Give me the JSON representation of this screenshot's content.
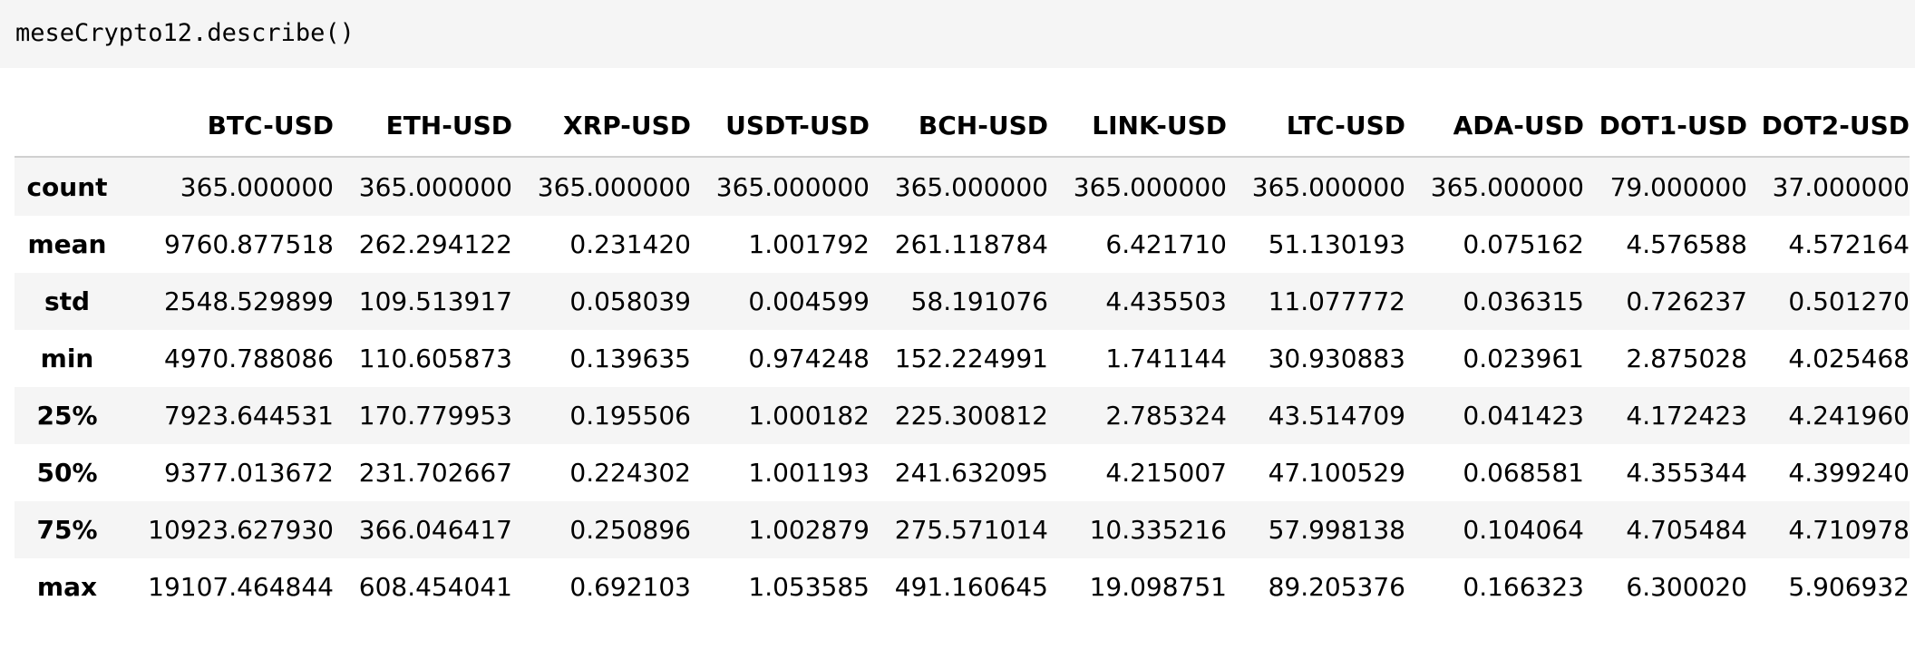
{
  "code_cell": {
    "input": "meseCrypto12.describe()"
  },
  "dataframe": {
    "columns": [
      "BTC-USD",
      "ETH-USD",
      "XRP-USD",
      "USDT-USD",
      "BCH-USD",
      "LINK-USD",
      "LTC-USD",
      "ADA-USD",
      "DOT1-USD",
      "DOT2-USD"
    ],
    "rows": [
      {
        "label": "count",
        "values": [
          "365.000000",
          "365.000000",
          "365.000000",
          "365.000000",
          "365.000000",
          "365.000000",
          "365.000000",
          "365.000000",
          "79.000000",
          "37.000000"
        ]
      },
      {
        "label": "mean",
        "values": [
          "9760.877518",
          "262.294122",
          "0.231420",
          "1.001792",
          "261.118784",
          "6.421710",
          "51.130193",
          "0.075162",
          "4.576588",
          "4.572164"
        ]
      },
      {
        "label": "std",
        "values": [
          "2548.529899",
          "109.513917",
          "0.058039",
          "0.004599",
          "58.191076",
          "4.435503",
          "11.077772",
          "0.036315",
          "0.726237",
          "0.501270"
        ]
      },
      {
        "label": "min",
        "values": [
          "4970.788086",
          "110.605873",
          "0.139635",
          "0.974248",
          "152.224991",
          "1.741144",
          "30.930883",
          "0.023961",
          "2.875028",
          "4.025468"
        ]
      },
      {
        "label": "25%",
        "values": [
          "7923.644531",
          "170.779953",
          "0.195506",
          "1.000182",
          "225.300812",
          "2.785324",
          "43.514709",
          "0.041423",
          "4.172423",
          "4.241960"
        ]
      },
      {
        "label": "50%",
        "values": [
          "9377.013672",
          "231.702667",
          "0.224302",
          "1.001193",
          "241.632095",
          "4.215007",
          "47.100529",
          "0.068581",
          "4.355344",
          "4.399240"
        ]
      },
      {
        "label": "75%",
        "values": [
          "10923.627930",
          "366.046417",
          "0.250896",
          "1.002879",
          "275.571014",
          "10.335216",
          "57.998138",
          "0.104064",
          "4.705484",
          "4.710978"
        ]
      },
      {
        "label": "max",
        "values": [
          "19107.464844",
          "608.454041",
          "0.692103",
          "1.053585",
          "491.160645",
          "19.098751",
          "89.205376",
          "0.166323",
          "6.300020",
          "5.906932"
        ]
      }
    ]
  }
}
